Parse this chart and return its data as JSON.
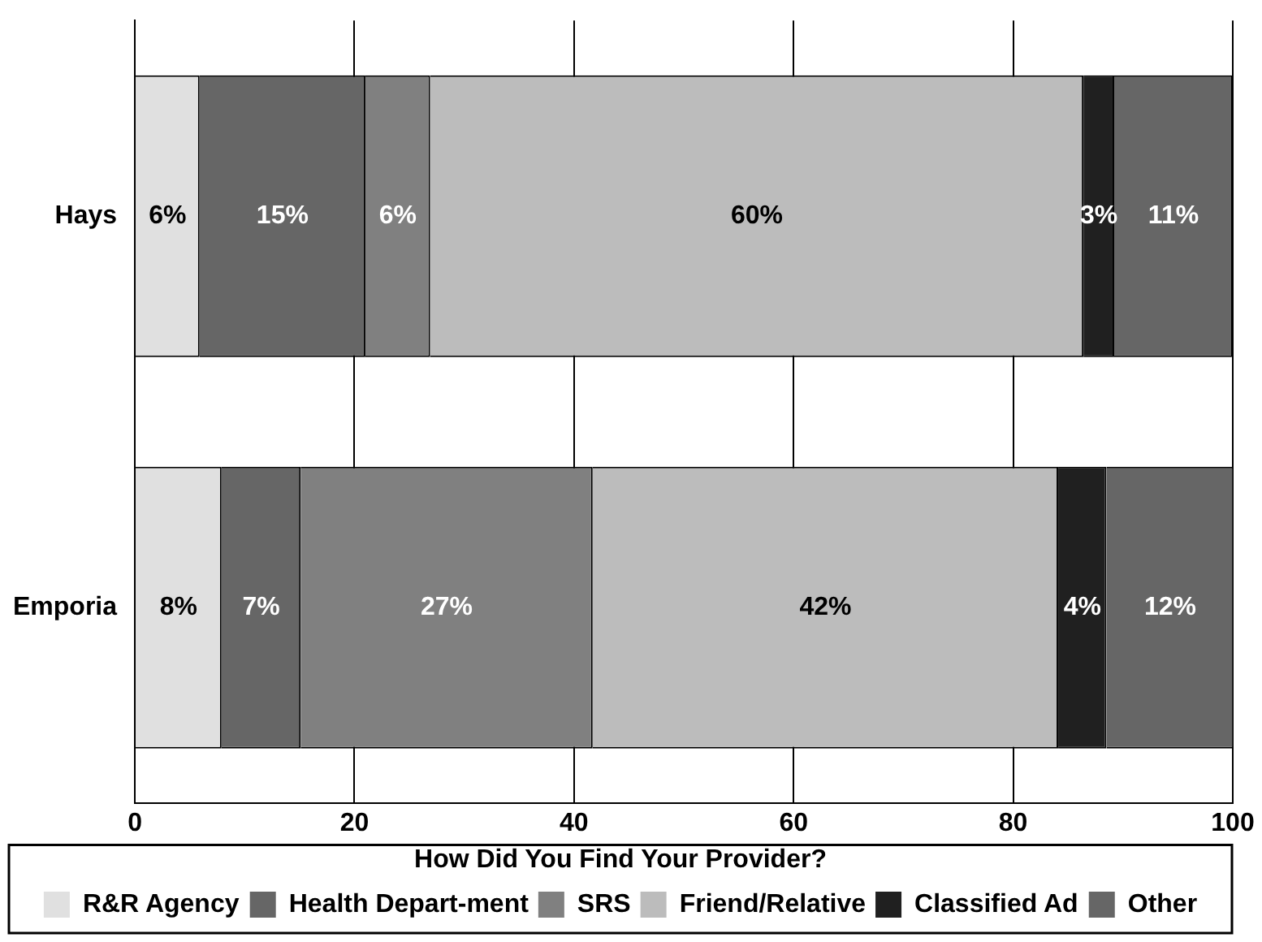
{
  "chart_data": {
    "type": "bar",
    "orientation": "horizontal",
    "stacked": true,
    "legend_title": "How Did You Find Your Provider?",
    "categories": [
      "Hays",
      "Emporia"
    ],
    "series": [
      {
        "name": "R&R Agency",
        "color": "#e0e0e0",
        "values": [
          5.9,
          7.9
        ],
        "value_labels": [
          "6%",
          "8%"
        ]
      },
      {
        "name": "Health Depart-ment",
        "color": "#666666",
        "values": [
          15.1,
          7.2
        ],
        "value_labels": [
          "15%",
          "7%"
        ]
      },
      {
        "name": "SRS",
        "color": "#808080",
        "values": [
          5.9,
          26.6
        ],
        "value_labels": [
          "6%",
          "27%"
        ]
      },
      {
        "name": "Friend/Relative",
        "color": "#bcbcbc",
        "values": [
          59.5,
          42.4
        ],
        "value_labels": [
          "60%",
          "42%"
        ]
      },
      {
        "name": "Classified Ad",
        "color": "#202020",
        "values": [
          2.8,
          4.4
        ],
        "value_labels": [
          "3%",
          "4%"
        ]
      },
      {
        "name": "Other",
        "color": "#666666",
        "values": [
          10.8,
          11.6
        ],
        "value_labels": [
          "11%",
          "12%"
        ]
      }
    ],
    "xlim": [
      0,
      100
    ],
    "xticks": [
      0,
      20,
      40,
      60,
      80,
      100
    ],
    "grid": "x",
    "legend": "bottom"
  }
}
